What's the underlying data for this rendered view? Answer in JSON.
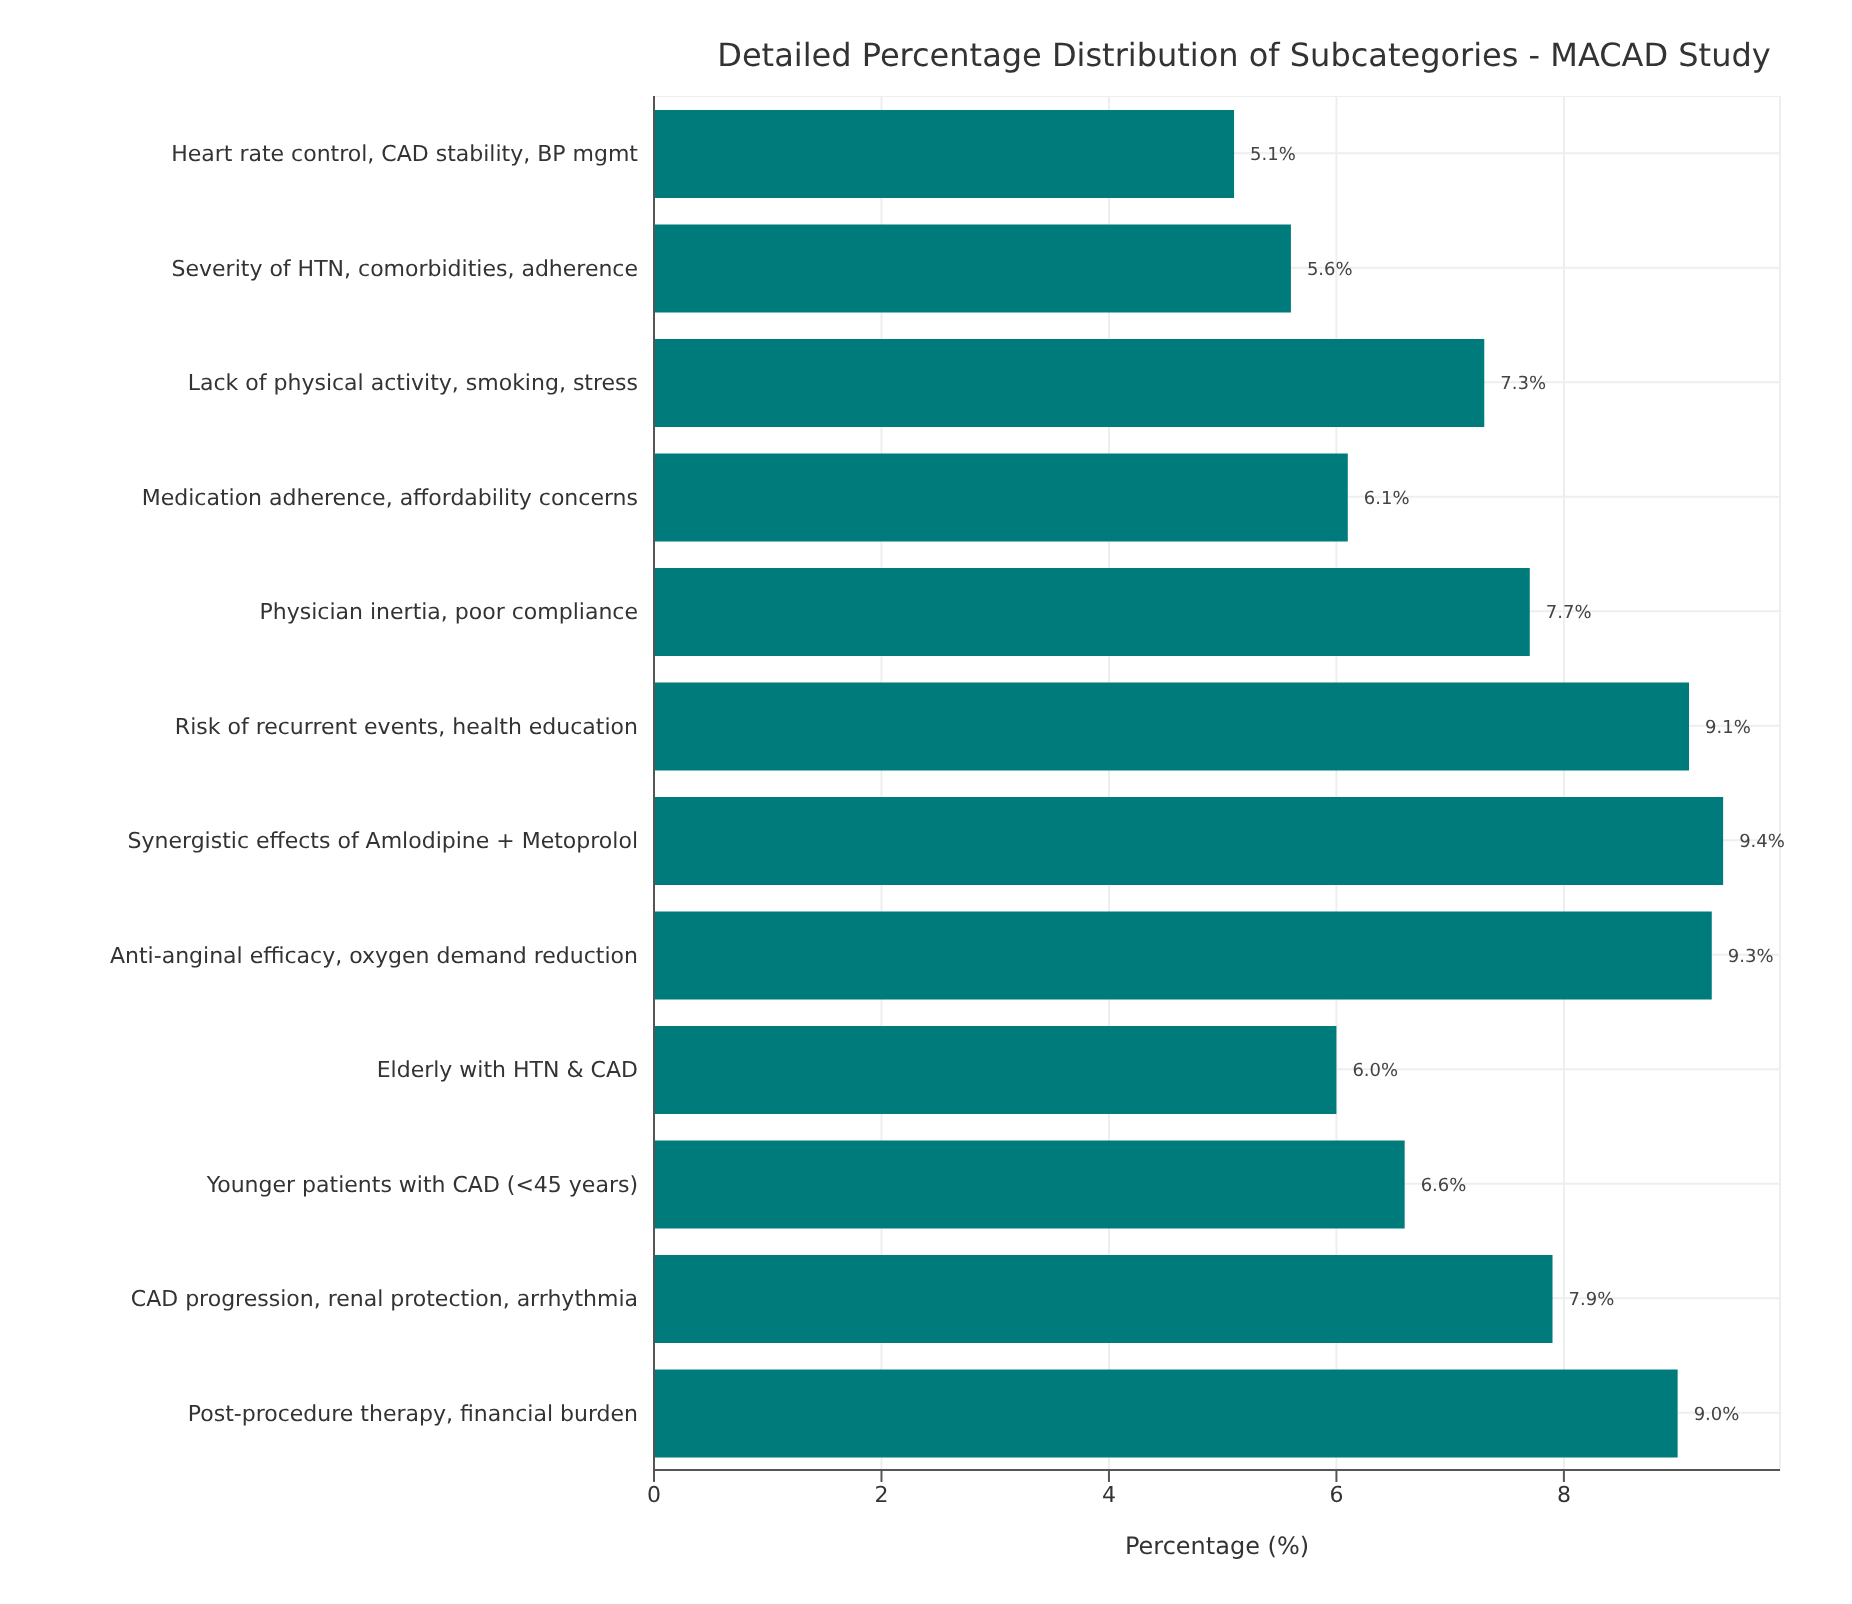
{
  "chart_data": {
    "type": "bar",
    "orientation": "horizontal",
    "title": "Detailed Percentage Distribution of Subcategories - MACAD Study",
    "xlabel": "Percentage (%)",
    "categories": [
      "Heart rate control, CAD stability, BP mgmt",
      "Severity of HTN, comorbidities, adherence",
      "Lack of physical activity, smoking, stress",
      "Medication adherence, affordability concerns",
      "Physician inertia, poor compliance",
      "Risk of recurrent events, health education",
      "Synergistic effects of Amlodipine + Metoprolol",
      "Anti-anginal efficacy, oxygen demand reduction",
      "Elderly with HTN & CAD",
      "Younger patients with CAD (<45 years)",
      "CAD progression, renal protection, arrhythmia",
      "Post-procedure therapy, financial burden"
    ],
    "values": [
      5.1,
      5.6,
      7.3,
      6.1,
      7.7,
      9.1,
      9.4,
      9.3,
      6.0,
      6.6,
      7.9,
      9.0
    ],
    "value_labels": [
      "5.1%",
      "5.6%",
      "7.3%",
      "6.1%",
      "7.7%",
      "9.1%",
      "9.4%",
      "9.3%",
      "6.0%",
      "6.6%",
      "7.9%",
      "9.0%"
    ],
    "color": "#007b7b",
    "xlim": [
      0,
      9.9
    ],
    "xticks": [
      0,
      2,
      4,
      6,
      8
    ],
    "grid": true
  }
}
